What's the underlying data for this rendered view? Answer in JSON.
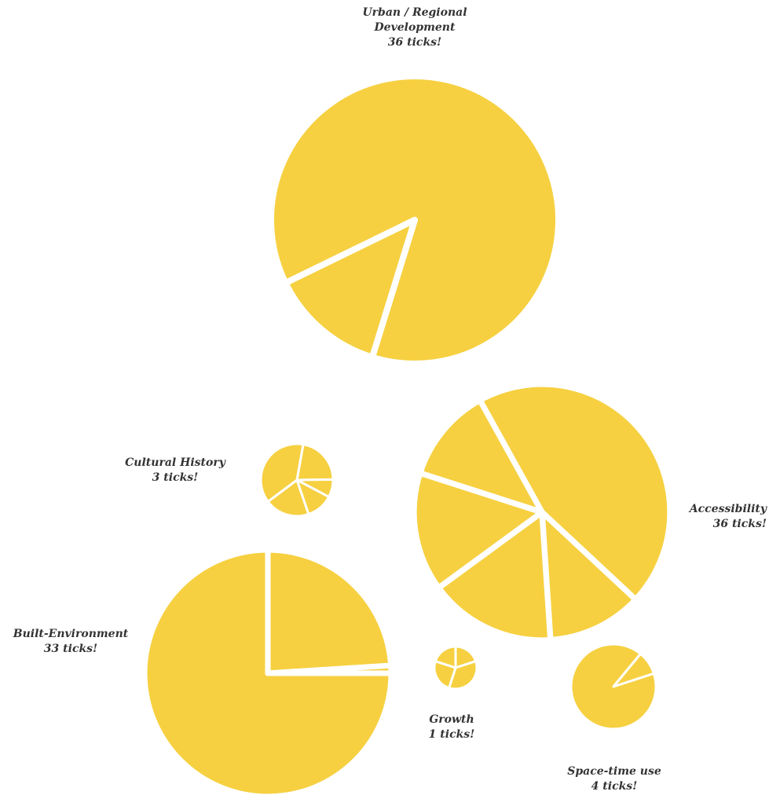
{
  "chart_data": {
    "type": "pie",
    "slice_color": "#F6D040",
    "separator_color": "#FFFFFF",
    "pies": [
      {
        "key": "urban",
        "label": "Urban / Regional Development",
        "label_lines": [
          "Urban / Regional",
          "Development"
        ],
        "count_text": "36 ticks!",
        "ticks": 36,
        "slices": [
          87,
          13
        ]
      },
      {
        "key": "accessibility",
        "label": "Accessibility",
        "label_lines": [
          "Accessibility"
        ],
        "count_text": "36 ticks!",
        "ticks": 36,
        "slices": [
          45,
          12,
          16,
          15,
          12
        ]
      },
      {
        "key": "cultural",
        "label": "Cultural History",
        "label_lines": [
          "Cultural History"
        ],
        "count_text": "3 ticks!",
        "ticks": 3,
        "slices": [
          22,
          8,
          12,
          20,
          38
        ]
      },
      {
        "key": "built",
        "label": "Built-Environment",
        "label_lines": [
          "Built-Environment"
        ],
        "count_text": "33 ticks!",
        "ticks": 33,
        "slices": [
          75,
          24,
          1
        ]
      },
      {
        "key": "growth",
        "label": "Growth",
        "label_lines": [
          "Growth"
        ],
        "count_text": "1 ticks!",
        "ticks": 1,
        "slices": [
          20,
          35,
          25,
          20
        ]
      },
      {
        "key": "spacetime",
        "label": "Space-time use",
        "label_lines": [
          "Space-time use"
        ],
        "count_text": "4 ticks!",
        "ticks": 4,
        "slices": [
          91,
          9
        ]
      }
    ]
  }
}
